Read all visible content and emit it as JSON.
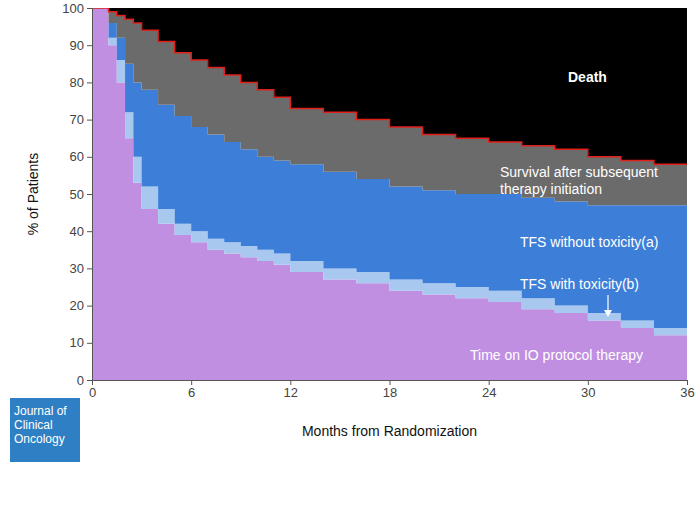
{
  "chart_data": {
    "type": "area",
    "stacked": true,
    "x_label": "Months from Randomization",
    "y_label": "% of Patients",
    "annotations": [
      "Journal of Clinical Oncology"
    ],
    "x": [
      0,
      1,
      1.5,
      2,
      2.5,
      3,
      4,
      5,
      6,
      7,
      8,
      9,
      10,
      11,
      12,
      14,
      16,
      18,
      20,
      22,
      24,
      26,
      28,
      30,
      32,
      34,
      36
    ],
    "xlim": [
      0,
      36
    ],
    "xticks": [
      0,
      6,
      12,
      18,
      24,
      30,
      36
    ],
    "ylim": [
      0,
      100
    ],
    "yticks": [
      0,
      10,
      20,
      30,
      40,
      50,
      60,
      70,
      80,
      90,
      100
    ],
    "series": [
      {
        "name": "Time on IO protocol therapy",
        "color": "#c08fe2",
        "values": [
          100,
          90,
          80,
          65,
          53,
          46,
          42,
          39,
          37,
          35,
          34,
          33,
          32,
          31,
          29,
          27,
          26,
          24,
          23,
          22,
          21,
          19,
          18,
          16,
          14,
          12,
          11
        ]
      },
      {
        "name": "TFS with toxicity(b)",
        "color": "#a8c8f0",
        "values": [
          0,
          2,
          6,
          7,
          7,
          6,
          4,
          3,
          3,
          3,
          3,
          3,
          3,
          3,
          3,
          3,
          3,
          3,
          3,
          3,
          3,
          3,
          2,
          2,
          2,
          2,
          2
        ]
      },
      {
        "name": "TFS without toxicity(a)",
        "color": "#3d7fd8",
        "values": [
          0,
          4,
          6,
          13,
          20,
          26,
          28,
          29,
          28,
          28,
          27,
          26,
          25,
          25,
          26,
          26,
          25,
          25,
          25,
          25,
          26,
          27,
          28,
          29,
          31,
          33,
          34
        ]
      },
      {
        "name": "Survival after subsequent therapy initiation",
        "color": "#6b6b6b",
        "values": [
          0,
          3,
          6,
          12,
          16,
          16,
          17,
          17,
          18,
          18,
          18,
          18,
          18,
          17,
          15,
          16,
          16,
          16,
          15,
          15,
          14,
          14,
          14,
          13,
          12,
          11,
          11
        ]
      },
      {
        "name": "Death",
        "color": "#000000",
        "values": [
          0,
          1,
          2,
          3,
          4,
          6,
          9,
          12,
          14,
          16,
          18,
          20,
          22,
          24,
          27,
          28,
          30,
          32,
          34,
          35,
          36,
          37,
          38,
          40,
          41,
          42,
          42
        ]
      }
    ]
  }
}
